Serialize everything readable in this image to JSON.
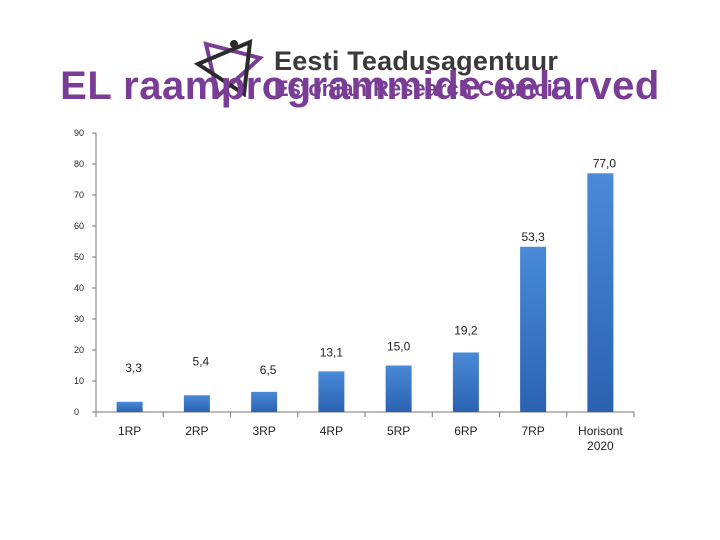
{
  "logo": {
    "name_et": "Eesti Teadusagentuur",
    "name_en": "Estonian Research Council",
    "icon": "research-council-star-icon",
    "color": "#7a3d96"
  },
  "slide": {
    "title": "EL raamprogrammide eelarved",
    "title_color": "#7a3d96"
  },
  "chart_data": {
    "type": "bar",
    "title": "",
    "xlabel": "",
    "ylabel": "",
    "categories": [
      "1RP",
      "2RP",
      "3RP",
      "4RP",
      "5RP",
      "6RP",
      "7RP",
      "Horisont 2020"
    ],
    "values": [
      3.3,
      5.4,
      6.5,
      13.1,
      15.0,
      19.2,
      53.3,
      77.0
    ],
    "data_labels": [
      "3,3",
      "5,4",
      "6,5",
      "13,1",
      "15,0",
      "19,2",
      "53,3",
      "77,0"
    ],
    "y_ticks": [
      0,
      10,
      20,
      30,
      40,
      50,
      60,
      70,
      80,
      90
    ],
    "ylim": [
      0,
      90
    ],
    "grid": false,
    "legend": "none",
    "bar_color": "#3a78c8"
  }
}
